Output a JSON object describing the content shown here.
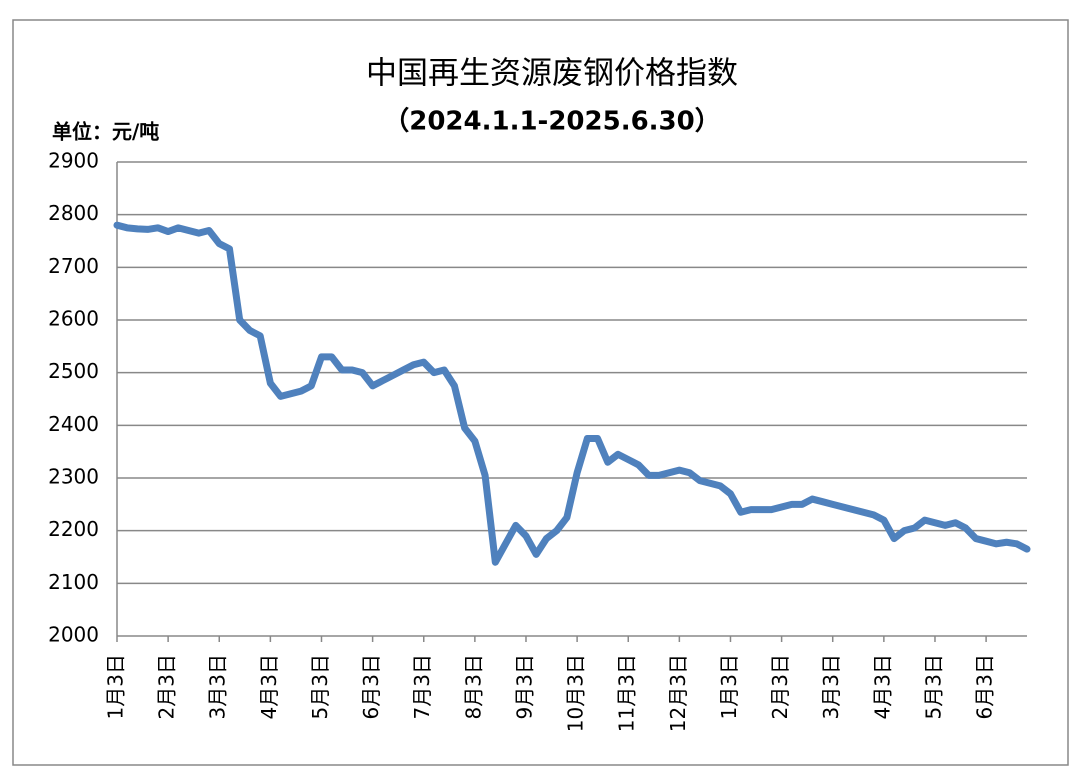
{
  "chart_data": {
    "type": "line",
    "title": "中国再生资源废钢价格指数",
    "subtitle": "（2024.1.1-2025.6.30）",
    "y_label": "单位：元/吨",
    "categories": [
      "1月3日",
      null,
      null,
      null,
      null,
      "2月3日",
      null,
      null,
      null,
      null,
      "3月3日",
      null,
      null,
      null,
      null,
      "4月3日",
      null,
      null,
      null,
      null,
      "5月3日",
      null,
      null,
      null,
      null,
      "6月3日",
      null,
      null,
      null,
      null,
      "7月3日",
      null,
      null,
      null,
      null,
      "8月3日",
      null,
      null,
      null,
      null,
      "9月3日",
      null,
      null,
      null,
      null,
      "10月3日",
      null,
      null,
      null,
      null,
      "11月3日",
      null,
      null,
      null,
      null,
      "12月3日",
      null,
      null,
      null,
      null,
      "1月3日",
      null,
      null,
      null,
      null,
      "2月3日",
      null,
      null,
      null,
      null,
      "3月3日",
      null,
      null,
      null,
      null,
      "4月3日",
      null,
      null,
      null,
      null,
      "5月3日",
      null,
      null,
      null,
      null,
      "6月3日",
      null,
      null,
      null,
      null
    ],
    "series": [
      {
        "name": "废钢价格指数",
        "color": "#4f81bd",
        "values": [
          2780,
          2775,
          2773,
          2772,
          2775,
          2768,
          2775,
          2770,
          2765,
          2770,
          2745,
          2735,
          2600,
          2580,
          2570,
          2480,
          2455,
          2460,
          2465,
          2475,
          2530,
          2530,
          2505,
          2505,
          2500,
          2475,
          2485,
          2495,
          2505,
          2515,
          2520,
          2500,
          2505,
          2475,
          2395,
          2370,
          2305,
          2140,
          2175,
          2210,
          2190,
          2155,
          2185,
          2200,
          2225,
          2310,
          2375,
          2375,
          2330,
          2345,
          2335,
          2325,
          2305,
          2305,
          2310,
          2315,
          2310,
          2295,
          2290,
          2285,
          2270,
          2235,
          2240,
          2240,
          2240,
          2245,
          2250,
          2250,
          2260,
          2255,
          2250,
          2245,
          2240,
          2235,
          2230,
          2220,
          2185,
          2200,
          2205,
          2220,
          2215,
          2210,
          2215,
          2205,
          2185,
          2180,
          2175,
          2178,
          2175,
          2165
        ]
      }
    ],
    "ylim": [
      2000,
      2900
    ],
    "yticks": [
      2000,
      2100,
      2200,
      2300,
      2400,
      2500,
      2600,
      2700,
      2800,
      2900
    ],
    "grid": true
  }
}
